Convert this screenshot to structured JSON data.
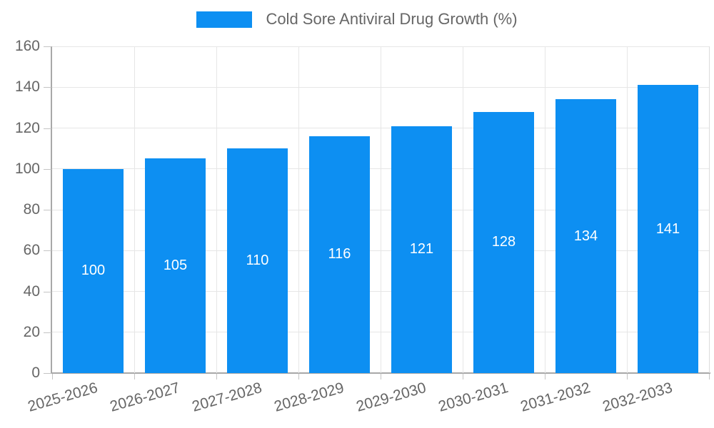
{
  "legend": {
    "label": "Cold Sore Antiviral Drug Growth (%)"
  },
  "colors": {
    "bar": "#0d8ff2",
    "grid": "#e6e6e6",
    "plot_right_border": "#dcdcdc",
    "axis": "#a8a8a8",
    "tick": "#c4c4c4",
    "text": "#666666",
    "bar_label": "#ffffff",
    "background": "#ffffff"
  },
  "chart_data": {
    "type": "bar",
    "title": "Cold Sore Antiviral Drug Growth (%)",
    "series_name": "Cold Sore Antiviral Drug Growth (%)",
    "categories": [
      "2025-2026",
      "2026-2027",
      "2027-2028",
      "2028-2029",
      "2029-2030",
      "2030-2031",
      "2031-2032",
      "2032-2033"
    ],
    "values": [
      100,
      105,
      110,
      116,
      121,
      128,
      134,
      141
    ],
    "xlabel": "",
    "ylabel": "",
    "ylim": [
      0,
      160
    ],
    "yticks": [
      0,
      20,
      40,
      60,
      80,
      100,
      120,
      140,
      160
    ],
    "grid": true,
    "legend_position": "top-center",
    "bar_value_labels": "inside-center",
    "x_tick_label_rotation_deg": -16
  }
}
